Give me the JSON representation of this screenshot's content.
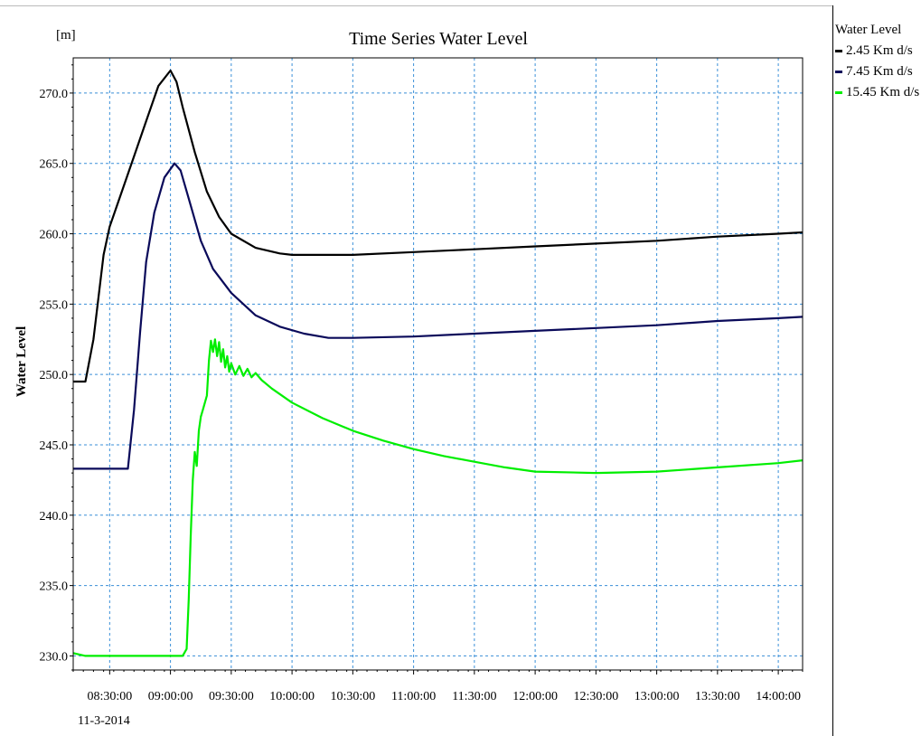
{
  "chart_data": {
    "type": "line",
    "title": "Time Series Water Level",
    "unit_label": "[m]",
    "ylabel": "Water Level",
    "date_label": "11-3-2014",
    "ylim": [
      229.0,
      272.5
    ],
    "xlim": [
      "08:12:00",
      "14:12:00"
    ],
    "yticks": [
      "230.0",
      "235.0",
      "240.0",
      "245.0",
      "250.0",
      "255.0",
      "260.0",
      "265.0",
      "270.0"
    ],
    "xticks": [
      "08:30:00",
      "09:00:00",
      "09:30:00",
      "10:00:00",
      "10:30:00",
      "11:00:00",
      "11:30:00",
      "12:00:00",
      "12:30:00",
      "13:00:00",
      "13:30:00",
      "14:00:00"
    ],
    "grid": true,
    "legend_position": "right",
    "legend_title": "Water Level",
    "series": [
      {
        "name": "2.45 Km d/s",
        "color": "#000000",
        "points": [
          [
            "08:12:00",
            249.5
          ],
          [
            "08:18:00",
            249.5
          ],
          [
            "08:22:00",
            252.5
          ],
          [
            "08:27:00",
            258.5
          ],
          [
            "08:30:00",
            260.5
          ],
          [
            "08:36:00",
            263.0
          ],
          [
            "08:42:00",
            265.5
          ],
          [
            "08:48:00",
            268.0
          ],
          [
            "08:54:00",
            270.5
          ],
          [
            "09:00:00",
            271.6
          ],
          [
            "09:03:00",
            270.8
          ],
          [
            "09:06:00",
            269.0
          ],
          [
            "09:12:00",
            265.8
          ],
          [
            "09:18:00",
            263.0
          ],
          [
            "09:24:00",
            261.2
          ],
          [
            "09:30:00",
            260.0
          ],
          [
            "09:42:00",
            259.0
          ],
          [
            "09:54:00",
            258.6
          ],
          [
            "10:00:00",
            258.5
          ],
          [
            "10:30:00",
            258.5
          ],
          [
            "11:00:00",
            258.7
          ],
          [
            "11:30:00",
            258.9
          ],
          [
            "12:00:00",
            259.1
          ],
          [
            "12:30:00",
            259.3
          ],
          [
            "13:00:00",
            259.5
          ],
          [
            "13:30:00",
            259.8
          ],
          [
            "14:00:00",
            260.0
          ],
          [
            "14:12:00",
            260.1
          ]
        ]
      },
      {
        "name": "7.45 Km d/s",
        "color": "#0a0a5a",
        "points": [
          [
            "08:12:00",
            243.3
          ],
          [
            "08:39:00",
            243.3
          ],
          [
            "08:42:00",
            247.5
          ],
          [
            "08:45:00",
            253.0
          ],
          [
            "08:48:00",
            258.0
          ],
          [
            "08:52:00",
            261.5
          ],
          [
            "08:57:00",
            264.0
          ],
          [
            "09:02:00",
            265.0
          ],
          [
            "09:05:00",
            264.5
          ],
          [
            "09:09:00",
            262.5
          ],
          [
            "09:15:00",
            259.5
          ],
          [
            "09:21:00",
            257.5
          ],
          [
            "09:30:00",
            255.8
          ],
          [
            "09:42:00",
            254.2
          ],
          [
            "09:54:00",
            253.4
          ],
          [
            "10:06:00",
            252.9
          ],
          [
            "10:18:00",
            252.6
          ],
          [
            "10:30:00",
            252.6
          ],
          [
            "11:00:00",
            252.7
          ],
          [
            "11:30:00",
            252.9
          ],
          [
            "12:00:00",
            253.1
          ],
          [
            "12:30:00",
            253.3
          ],
          [
            "13:00:00",
            253.5
          ],
          [
            "13:30:00",
            253.8
          ],
          [
            "14:00:00",
            254.0
          ],
          [
            "14:12:00",
            254.1
          ]
        ]
      },
      {
        "name": "15.45 Km d/s",
        "color": "#00ee00",
        "points": [
          [
            "08:12:00",
            230.2
          ],
          [
            "08:18:00",
            230.0
          ],
          [
            "09:06:00",
            230.0
          ],
          [
            "09:08:00",
            230.5
          ],
          [
            "09:09:00",
            234.0
          ],
          [
            "09:10:00",
            238.5
          ],
          [
            "09:11:00",
            242.5
          ],
          [
            "09:12:00",
            244.5
          ],
          [
            "09:13:00",
            243.5
          ],
          [
            "09:14:00",
            246.0
          ],
          [
            "09:15:00",
            247.0
          ],
          [
            "09:16:00",
            247.5
          ],
          [
            "09:17:00",
            248.0
          ],
          [
            "09:18:00",
            248.5
          ],
          [
            "09:19:00",
            251.0
          ],
          [
            "09:20:00",
            252.4
          ],
          [
            "09:21:00",
            251.6
          ],
          [
            "09:22:00",
            252.5
          ],
          [
            "09:23:00",
            251.3
          ],
          [
            "09:24:00",
            252.3
          ],
          [
            "09:25:00",
            250.9
          ],
          [
            "09:26:00",
            251.8
          ],
          [
            "09:27:00",
            250.5
          ],
          [
            "09:28:00",
            251.3
          ],
          [
            "09:29:00",
            250.2
          ],
          [
            "09:30:00",
            250.8
          ],
          [
            "09:32:00",
            250.0
          ],
          [
            "09:34:00",
            250.6
          ],
          [
            "09:36:00",
            249.9
          ],
          [
            "09:38:00",
            250.4
          ],
          [
            "09:40:00",
            249.8
          ],
          [
            "09:42:00",
            250.1
          ],
          [
            "09:45:00",
            249.6
          ],
          [
            "09:50:00",
            249.0
          ],
          [
            "10:00:00",
            248.0
          ],
          [
            "10:15:00",
            246.9
          ],
          [
            "10:30:00",
            246.0
          ],
          [
            "10:45:00",
            245.3
          ],
          [
            "11:00:00",
            244.7
          ],
          [
            "11:15:00",
            244.2
          ],
          [
            "11:30:00",
            243.8
          ],
          [
            "11:45:00",
            243.4
          ],
          [
            "12:00:00",
            243.1
          ],
          [
            "12:30:00",
            243.0
          ],
          [
            "13:00:00",
            243.1
          ],
          [
            "13:30:00",
            243.4
          ],
          [
            "14:00:00",
            243.7
          ],
          [
            "14:12:00",
            243.9
          ]
        ]
      }
    ]
  }
}
